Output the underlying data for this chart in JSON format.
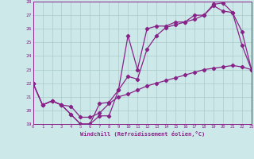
{
  "xlabel": "Windchill (Refroidissement éolien,°C)",
  "xlim": [
    0,
    23
  ],
  "ylim": [
    19,
    28
  ],
  "xticks": [
    0,
    1,
    2,
    3,
    4,
    5,
    6,
    7,
    8,
    9,
    10,
    11,
    12,
    13,
    14,
    15,
    16,
    17,
    18,
    19,
    20,
    21,
    22,
    23
  ],
  "yticks": [
    19,
    20,
    21,
    22,
    23,
    24,
    25,
    26,
    27,
    28
  ],
  "bg_color": "#cce8e8",
  "line_color": "#882288",
  "grid_color": "#aacccc",
  "line1_x": [
    0,
    1,
    2,
    3,
    4,
    5,
    6,
    7,
    8,
    9,
    10,
    11,
    12,
    13,
    14,
    15,
    16,
    17,
    18,
    19,
    20,
    21,
    22,
    23
  ],
  "line1_y": [
    22.0,
    20.4,
    20.7,
    20.4,
    19.7,
    19.0,
    19.0,
    20.5,
    20.6,
    21.5,
    25.5,
    23.0,
    26.0,
    26.2,
    26.2,
    26.5,
    26.5,
    27.0,
    27.0,
    27.7,
    27.3,
    27.2,
    25.8,
    23.0
  ],
  "line2_x": [
    0,
    1,
    2,
    3,
    4,
    5,
    6,
    7,
    8,
    9,
    10,
    11,
    12,
    13,
    14,
    15,
    16,
    17,
    18,
    19,
    20,
    21,
    22,
    23
  ],
  "line2_y": [
    22.0,
    20.4,
    20.7,
    20.4,
    19.7,
    19.0,
    19.0,
    19.6,
    19.6,
    21.5,
    22.5,
    22.3,
    24.5,
    25.5,
    26.1,
    26.3,
    26.5,
    26.7,
    27.0,
    27.8,
    27.9,
    27.2,
    24.8,
    23.0
  ],
  "line3_x": [
    0,
    1,
    2,
    3,
    4,
    5,
    6,
    7,
    8,
    9,
    10,
    11,
    12,
    13,
    14,
    15,
    16,
    17,
    18,
    19,
    20,
    21,
    22,
    23
  ],
  "line3_y": [
    22.0,
    20.4,
    20.7,
    20.4,
    20.3,
    19.5,
    19.5,
    19.8,
    20.5,
    21.0,
    21.2,
    21.5,
    21.8,
    22.0,
    22.2,
    22.4,
    22.6,
    22.8,
    23.0,
    23.1,
    23.2,
    23.3,
    23.2,
    23.0
  ]
}
